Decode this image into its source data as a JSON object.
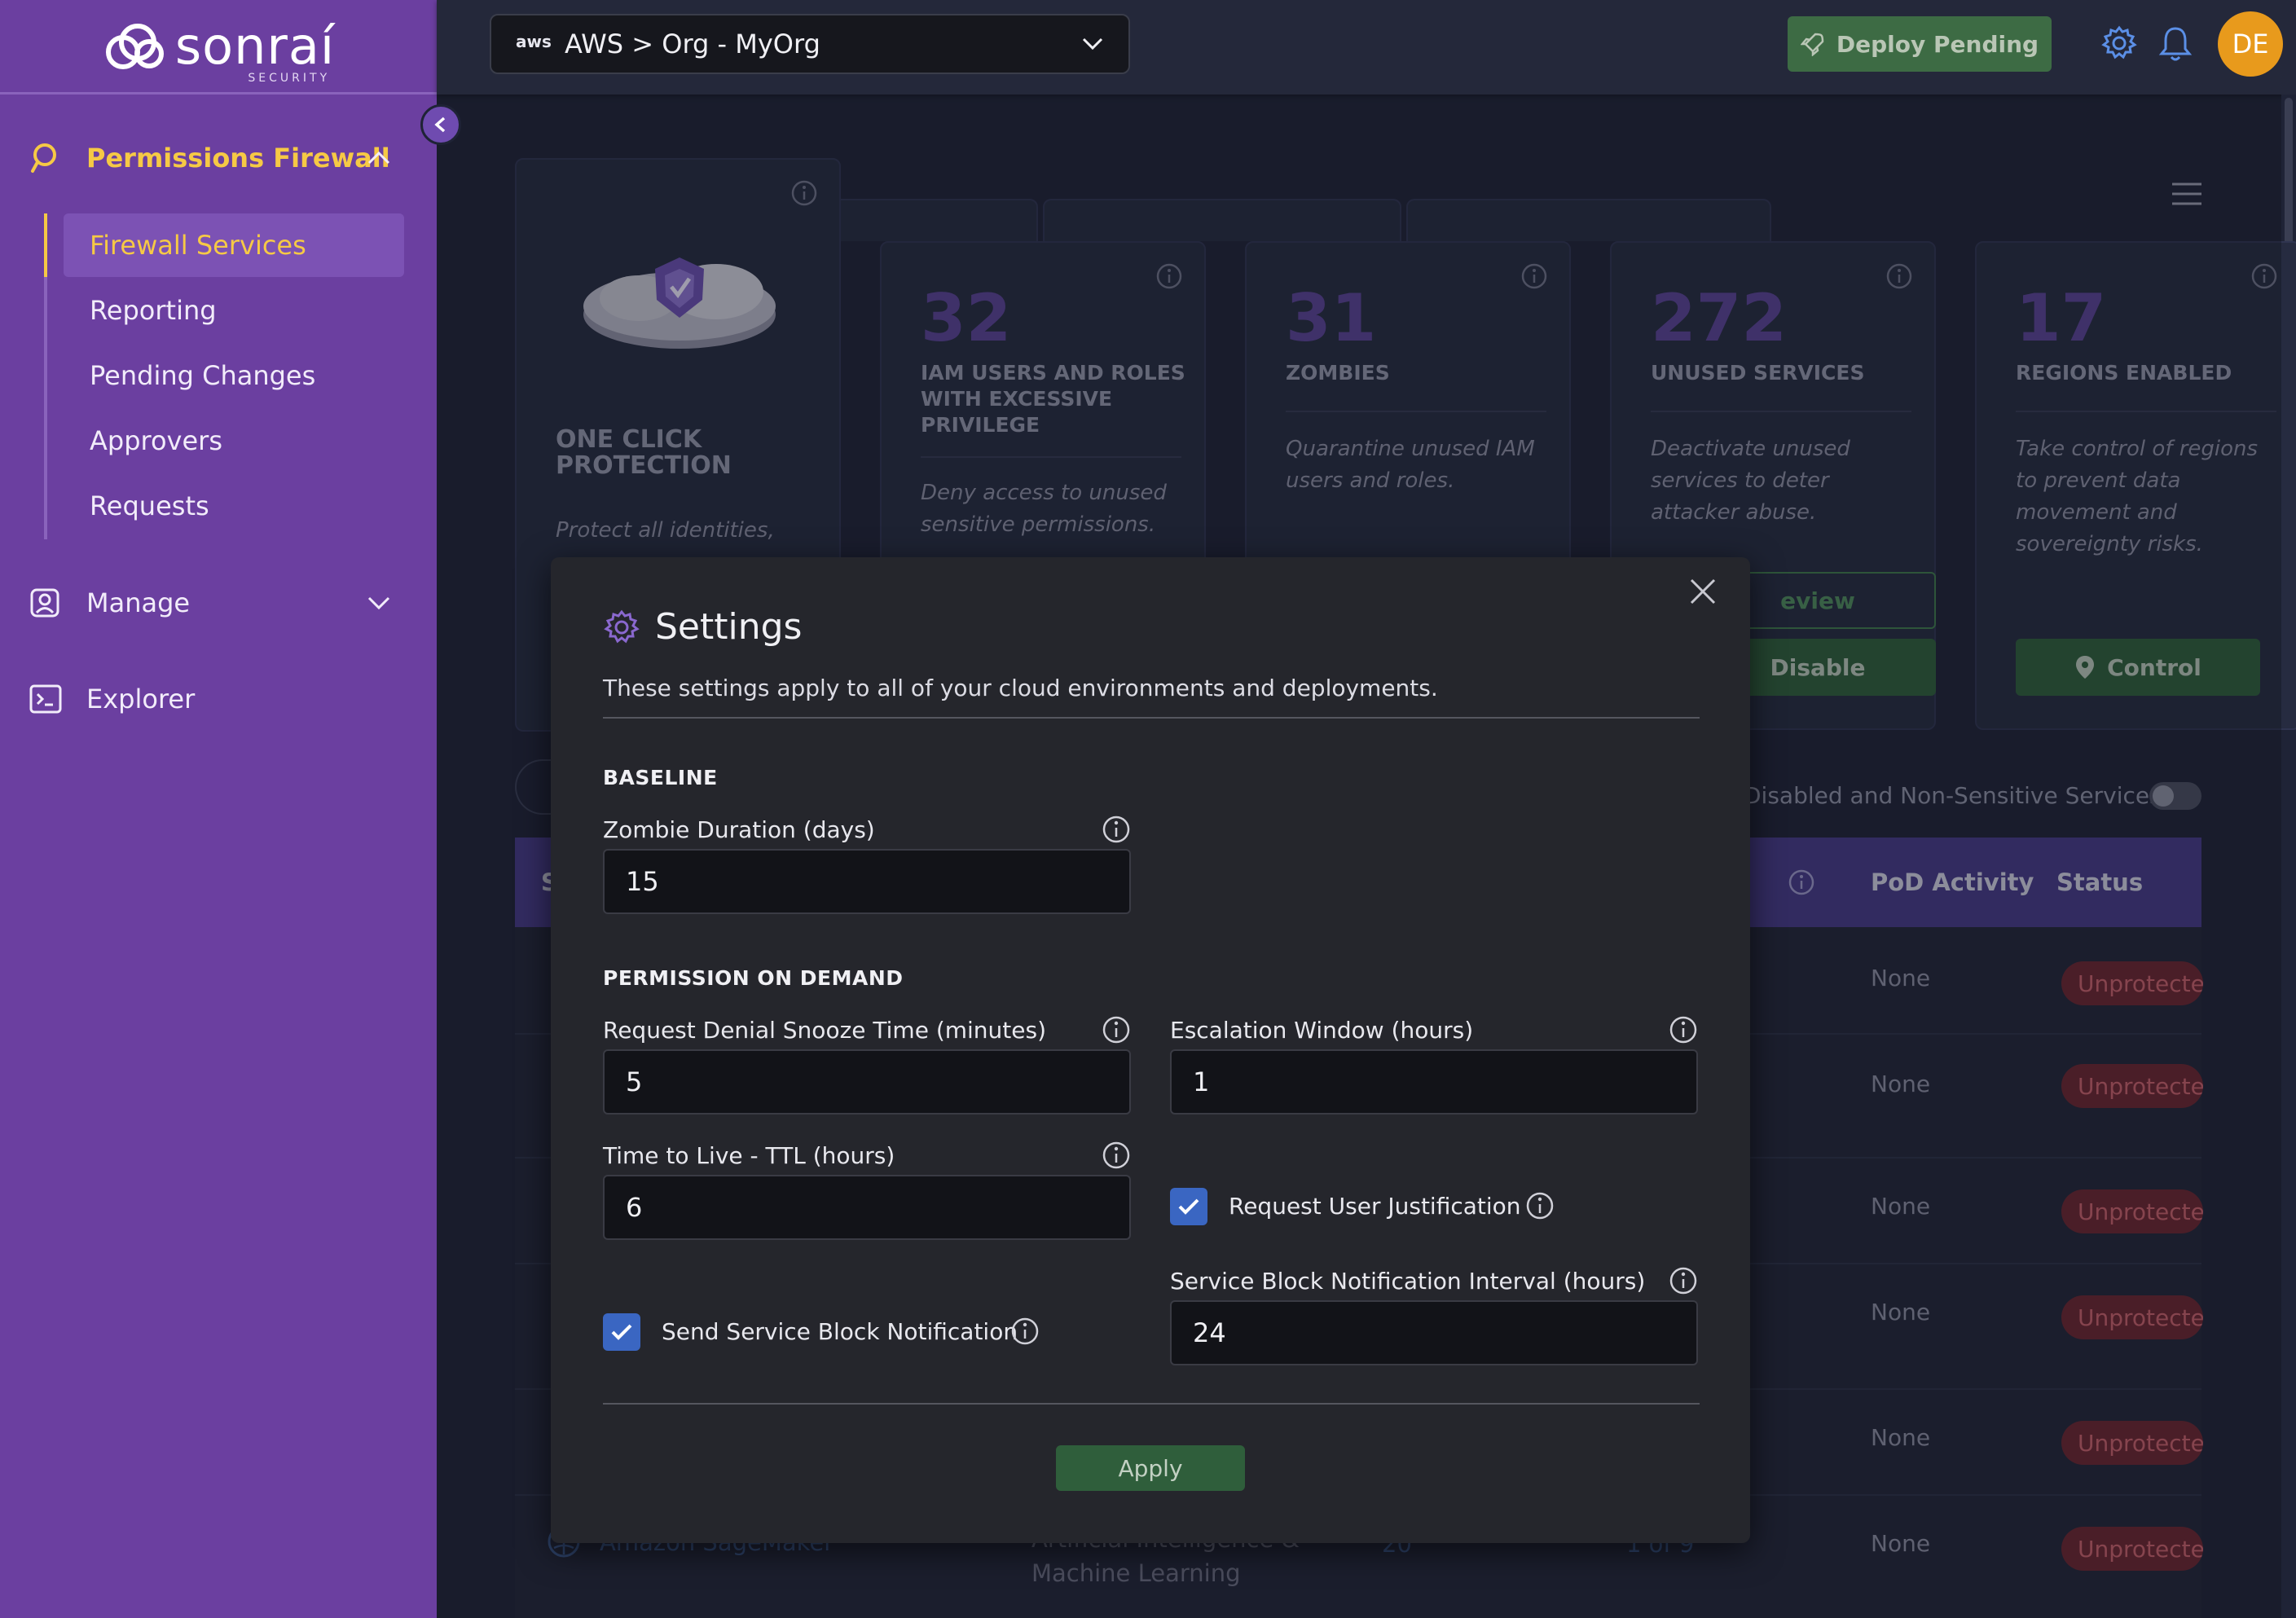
{
  "brand": {
    "name": "sonraí",
    "tagline": "SECURITY"
  },
  "sidebar": {
    "sections": [
      {
        "label": "Permissions Firewall",
        "expanded": true
      },
      {
        "label": "Manage",
        "expanded": false
      },
      {
        "label": "Explorer"
      }
    ],
    "sub_items": [
      {
        "label": "Firewall Services",
        "active": true
      },
      {
        "label": "Reporting"
      },
      {
        "label": "Pending Changes"
      },
      {
        "label": "Approvers"
      },
      {
        "label": "Requests"
      }
    ]
  },
  "topbar": {
    "env_prefix": "aws",
    "env_value": "AWS > Org - MyOrg",
    "deploy_label": "Deploy Pending",
    "avatar_initials": "DE"
  },
  "dashboard": {
    "protection_card": {
      "title_line1": "ONE CLICK",
      "title_line2": "PROTECTION",
      "desc": "Protect all identities,"
    },
    "metrics": [
      {
        "value": "32",
        "title": "IAM USERS AND ROLES WITH EXCESSIVE PRIVILEGE",
        "desc": "Deny access to unused sensitive permissions."
      },
      {
        "value": "31",
        "title": "ZOMBIES",
        "desc": "Quarantine unused IAM users and roles."
      },
      {
        "value": "272",
        "title": "UNUSED SERVICES",
        "desc": "Deactivate unused services to deter attacker abuse.",
        "btn_outline": "eview",
        "btn_primary": "Disable"
      },
      {
        "value": "17",
        "title": "REGIONS ENABLED",
        "desc": "Take control of regions to prevent data movement and sovereignty risks.",
        "btn_primary": "Control"
      }
    ],
    "filter_text": "Disabled and Non-Sensitive Services",
    "table_headers": {
      "first": "S",
      "pod_activity": "PoD Activity",
      "status": "Status"
    },
    "rows": [
      {
        "pod": "None",
        "status": "Unprotected"
      },
      {
        "pod": "None",
        "status": "Unprotected"
      },
      {
        "pod": "None",
        "status": "Unprotected"
      },
      {
        "pod": "None",
        "status": "Unprotected"
      },
      {
        "pod": "None",
        "status": "Unprotected"
      },
      {
        "name": "Amazon SageMaker",
        "category_line1": "Artificial Intelligence &",
        "category_line2": "Machine Learning",
        "count": "20",
        "ratio": "1 of 9",
        "pod": "None",
        "status": "Unprotected"
      }
    ]
  },
  "colors": {
    "sidebar": "#6b3fa0",
    "accent_yellow": "#f6c945",
    "deploy_green": "#3d6b44",
    "checkbox_blue": "#3a66c2"
  },
  "modal": {
    "title": "Settings",
    "subtitle": "These settings apply to all of your cloud environments and deployments.",
    "baseline_heading": "BASELINE",
    "zombie_duration": {
      "label": "Zombie Duration (days)",
      "value": "15"
    },
    "pod_heading": "PERMISSION ON DEMAND",
    "request_denial": {
      "label": "Request Denial Snooze Time (minutes)",
      "value": "5"
    },
    "escalation_window": {
      "label": "Escalation Window (hours)",
      "value": "1"
    },
    "ttl": {
      "label": "Time to Live - TTL (hours)",
      "value": "6"
    },
    "request_justification": {
      "label": "Request User Justification",
      "checked": true
    },
    "block_interval": {
      "label": "Service Block Notification Interval (hours)",
      "value": "24"
    },
    "send_block_notification": {
      "label": "Send Service Block Notification",
      "checked": true
    },
    "apply_label": "Apply"
  }
}
